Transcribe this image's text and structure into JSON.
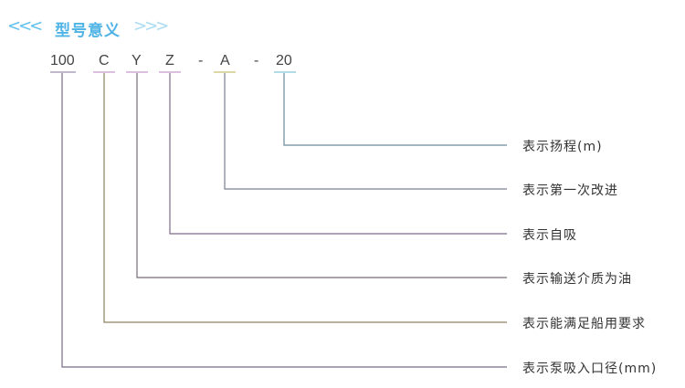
{
  "header": {
    "title": "型号意义",
    "left_arrows": "<<<",
    "right_arrows": ">>>"
  },
  "codes": [
    "100",
    "C",
    "Y",
    "Z",
    "-",
    "A",
    "-",
    "20"
  ],
  "labels": [
    "表示扬程(m)",
    "表示第一次改进",
    "表示自吸",
    "表示输送介质为油",
    "表示能满足船用要求",
    "表示泵吸入口径(mm)"
  ],
  "colors": {
    "title": "#4fb3e6",
    "text": "#333333"
  }
}
